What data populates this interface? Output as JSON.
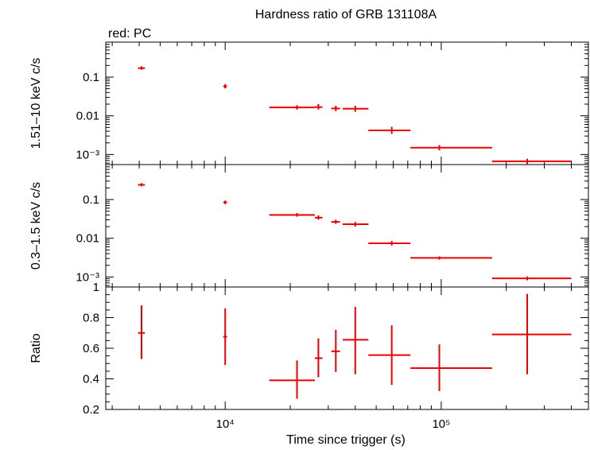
{
  "chart_data": {
    "type": "scatter",
    "title": "Hardness ratio of GRB 131108A",
    "subtitle": "red: PC",
    "xlabel": "Time since trigger (s)",
    "x_scale": "log",
    "xlim": [
      2800,
      480000
    ],
    "x_major_ticks": [
      {
        "value": 10000,
        "label": "10⁴"
      },
      {
        "value": 100000,
        "label": "10⁵"
      }
    ],
    "color": "#ee0000",
    "panels": [
      {
        "ylabel": "1.51–10 keV c/s",
        "y_scale": "log",
        "ylim": [
          0.00055,
          0.8
        ],
        "yticks": [
          {
            "value": 0.1,
            "label": "0.1"
          },
          {
            "value": 0.01,
            "label": "0.01"
          },
          {
            "value": 0.001,
            "label": "10⁻³"
          }
        ],
        "points": [
          {
            "x": 4100,
            "xlo": 3950,
            "xhi": 4250,
            "y": 0.17,
            "ylo": 0.155,
            "yhi": 0.19
          },
          {
            "x": 10000,
            "xlo": 9800,
            "xhi": 10200,
            "y": 0.058,
            "ylo": 0.051,
            "yhi": 0.066
          },
          {
            "x": 21500,
            "xlo": 16000,
            "xhi": 26000,
            "y": 0.0165,
            "ylo": 0.0145,
            "yhi": 0.0188
          },
          {
            "x": 27000,
            "xlo": 26000,
            "xhi": 28200,
            "y": 0.0168,
            "ylo": 0.0145,
            "yhi": 0.02
          },
          {
            "x": 32500,
            "xlo": 31000,
            "xhi": 34000,
            "y": 0.0155,
            "ylo": 0.0132,
            "yhi": 0.0182
          },
          {
            "x": 40000,
            "xlo": 35000,
            "xhi": 46000,
            "y": 0.0152,
            "ylo": 0.0127,
            "yhi": 0.0182
          },
          {
            "x": 59000,
            "xlo": 46000,
            "xhi": 72000,
            "y": 0.0042,
            "ylo": 0.0034,
            "yhi": 0.0052
          },
          {
            "x": 98000,
            "xlo": 72000,
            "xhi": 172000,
            "y": 0.0015,
            "ylo": 0.00128,
            "yhi": 0.00175
          },
          {
            "x": 250000,
            "xlo": 172000,
            "xhi": 400000,
            "y": 0.00067,
            "ylo": 0.00057,
            "yhi": 0.00078
          }
        ]
      },
      {
        "ylabel": "0.3–1.5 keV c/s",
        "y_scale": "log",
        "ylim": [
          0.00055,
          0.8
        ],
        "yticks": [
          {
            "value": 0.1,
            "label": "0.1"
          },
          {
            "value": 0.01,
            "label": "0.01"
          },
          {
            "value": 0.001,
            "label": "10⁻³"
          }
        ],
        "points": [
          {
            "x": 4100,
            "xlo": 3950,
            "xhi": 4250,
            "y": 0.24,
            "ylo": 0.22,
            "yhi": 0.265
          },
          {
            "x": 10000,
            "xlo": 9800,
            "xhi": 10200,
            "y": 0.085,
            "ylo": 0.076,
            "yhi": 0.094
          },
          {
            "x": 21500,
            "xlo": 16000,
            "xhi": 26000,
            "y": 0.04,
            "ylo": 0.036,
            "yhi": 0.045
          },
          {
            "x": 27000,
            "xlo": 26000,
            "xhi": 28200,
            "y": 0.034,
            "ylo": 0.03,
            "yhi": 0.039
          },
          {
            "x": 32500,
            "xlo": 31000,
            "xhi": 34000,
            "y": 0.0265,
            "ylo": 0.0235,
            "yhi": 0.03
          },
          {
            "x": 40000,
            "xlo": 35000,
            "xhi": 46000,
            "y": 0.023,
            "ylo": 0.02,
            "yhi": 0.0265
          },
          {
            "x": 59000,
            "xlo": 46000,
            "xhi": 72000,
            "y": 0.0074,
            "ylo": 0.0065,
            "yhi": 0.0085
          },
          {
            "x": 98000,
            "xlo": 72000,
            "xhi": 172000,
            "y": 0.0031,
            "ylo": 0.0028,
            "yhi": 0.0034
          },
          {
            "x": 250000,
            "xlo": 172000,
            "xhi": 400000,
            "y": 0.00092,
            "ylo": 0.00082,
            "yhi": 0.00103
          }
        ]
      },
      {
        "ylabel": "Ratio",
        "y_scale": "linear",
        "ylim": [
          0.2,
          1.0
        ],
        "yticks": [
          {
            "value": 0.2,
            "label": "0.2"
          },
          {
            "value": 0.4,
            "label": "0.4"
          },
          {
            "value": 0.6,
            "label": "0.6"
          },
          {
            "value": 0.8,
            "label": "0.8"
          },
          {
            "value": 1.0,
            "label": "1"
          }
        ],
        "points": [
          {
            "x": 4100,
            "xlo": 3950,
            "xhi": 4250,
            "y": 0.7,
            "ylo": 0.53,
            "yhi": 0.88
          },
          {
            "x": 10000,
            "xlo": 9800,
            "xhi": 10200,
            "y": 0.675,
            "ylo": 0.49,
            "yhi": 0.86
          },
          {
            "x": 21500,
            "xlo": 16000,
            "xhi": 26000,
            "y": 0.39,
            "ylo": 0.27,
            "yhi": 0.52
          },
          {
            "x": 27000,
            "xlo": 26000,
            "xhi": 28200,
            "y": 0.535,
            "ylo": 0.41,
            "yhi": 0.665
          },
          {
            "x": 32500,
            "xlo": 31000,
            "xhi": 34000,
            "y": 0.58,
            "ylo": 0.445,
            "yhi": 0.72
          },
          {
            "x": 40000,
            "xlo": 35000,
            "xhi": 46000,
            "y": 0.655,
            "ylo": 0.43,
            "yhi": 0.87
          },
          {
            "x": 59000,
            "xlo": 46000,
            "xhi": 72000,
            "y": 0.555,
            "ylo": 0.36,
            "yhi": 0.75
          },
          {
            "x": 98000,
            "xlo": 72000,
            "xhi": 172000,
            "y": 0.47,
            "ylo": 0.32,
            "yhi": 0.625
          },
          {
            "x": 250000,
            "xlo": 172000,
            "xhi": 400000,
            "y": 0.69,
            "ylo": 0.43,
            "yhi": 0.955
          }
        ]
      }
    ]
  }
}
